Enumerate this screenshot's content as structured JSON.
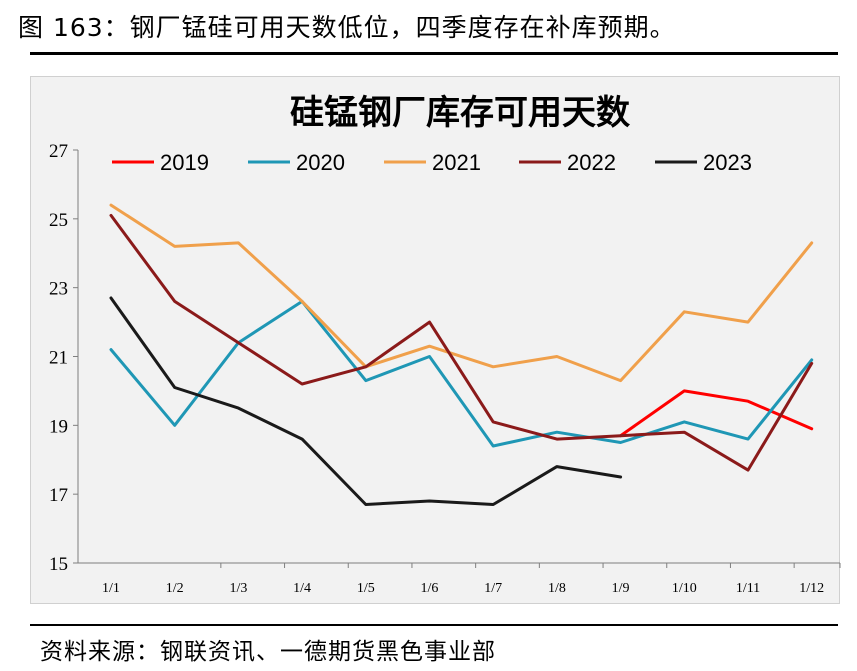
{
  "caption": "图 163：钢厂锰硅可用天数低位，四季度存在补库预期。",
  "source": "资料来源：钢联资讯、一德期货黑色事业部",
  "chart_data": {
    "type": "line",
    "title": "硅锰钢厂库存可用天数",
    "xlabel": "",
    "ylabel": "",
    "categories": [
      "1/1",
      "1/2",
      "1/3",
      "1/4",
      "1/5",
      "1/6",
      "1/7",
      "1/8",
      "1/9",
      "1/10",
      "1/11",
      "1/12"
    ],
    "ylim": [
      15,
      27
    ],
    "yticks": [
      15,
      17,
      19,
      21,
      23,
      25,
      27
    ],
    "legend_position": "top",
    "series": [
      {
        "name": "2019",
        "color": "#ff0000",
        "values": [
          null,
          null,
          null,
          null,
          null,
          null,
          null,
          null,
          18.7,
          20.0,
          19.7,
          18.9
        ]
      },
      {
        "name": "2020",
        "color": "#1f97b5",
        "values": [
          21.2,
          19.0,
          21.4,
          22.6,
          20.3,
          21.0,
          18.4,
          18.8,
          18.5,
          19.1,
          18.6,
          20.9
        ]
      },
      {
        "name": "2021",
        "color": "#f0a04b",
        "values": [
          25.4,
          24.2,
          24.3,
          22.6,
          20.7,
          21.3,
          20.7,
          21.0,
          20.3,
          22.3,
          22.0,
          24.3
        ]
      },
      {
        "name": "2022",
        "color": "#8b1a1a",
        "values": [
          25.1,
          22.6,
          21.4,
          20.2,
          20.7,
          22.0,
          19.1,
          18.6,
          18.7,
          18.8,
          17.7,
          20.8
        ]
      },
      {
        "name": "2023",
        "color": "#1a1a1a",
        "values": [
          22.7,
          20.1,
          19.5,
          18.6,
          16.7,
          16.8,
          16.7,
          17.8,
          17.5,
          null,
          null,
          null
        ]
      }
    ]
  }
}
